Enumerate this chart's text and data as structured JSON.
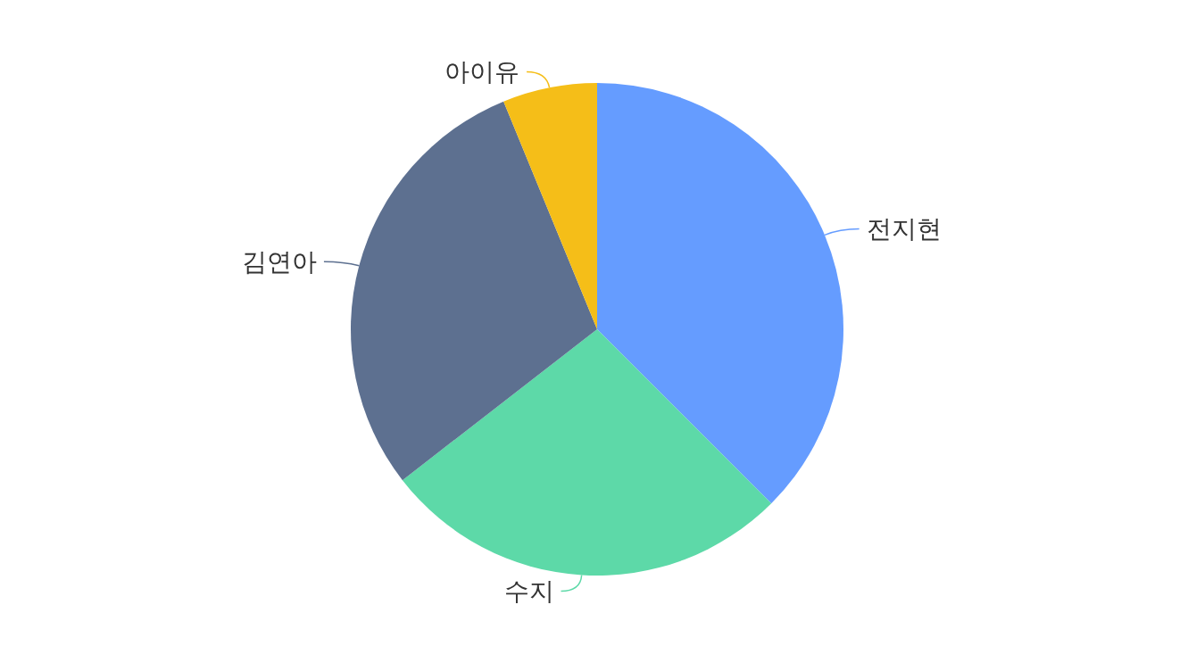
{
  "chart_data": {
    "type": "pie",
    "categories": [
      "전지현",
      "수지",
      "김연아",
      "아이유"
    ],
    "values": [
      37.5,
      27,
      29.3,
      6.2
    ],
    "colors": [
      "#659cff",
      "#5dd9a8",
      "#5d7090",
      "#f5be18"
    ]
  }
}
